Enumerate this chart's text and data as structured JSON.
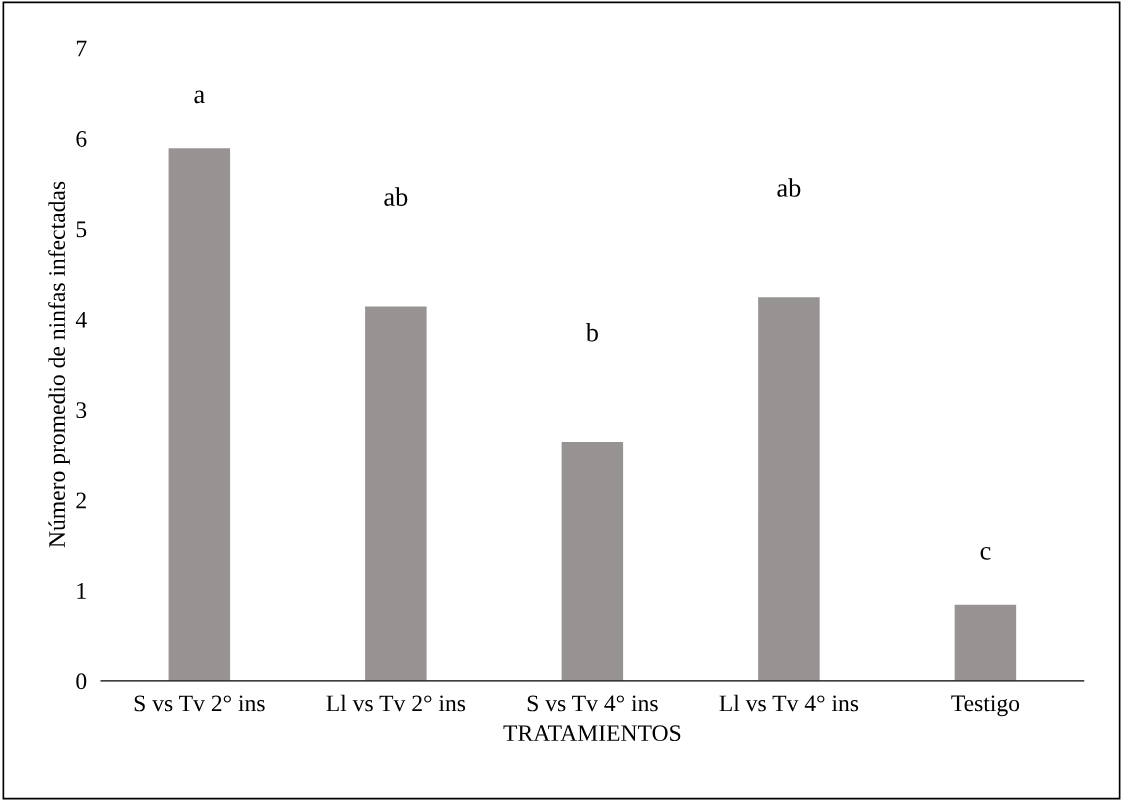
{
  "chart_data": {
    "type": "bar",
    "xlabel": "TRATAMIENTOS",
    "ylabel": "Número promedio de ninfas infectadas",
    "categories": [
      "S vs Tv 2° ins",
      "Ll vs Tv 2° ins",
      "S vs Tv 4° ins",
      "Ll vs Tv 4° ins",
      "Testigo"
    ],
    "values": [
      5.9,
      4.15,
      2.65,
      4.25,
      0.85
    ],
    "color": "#979392",
    "ylim": [
      0,
      7
    ],
    "yticks": [
      0,
      1,
      2,
      3,
      4,
      5,
      6,
      7
    ],
    "grid": false,
    "legend": false,
    "annotations": [
      "a",
      "ab",
      "b",
      "ab",
      "c"
    ]
  }
}
